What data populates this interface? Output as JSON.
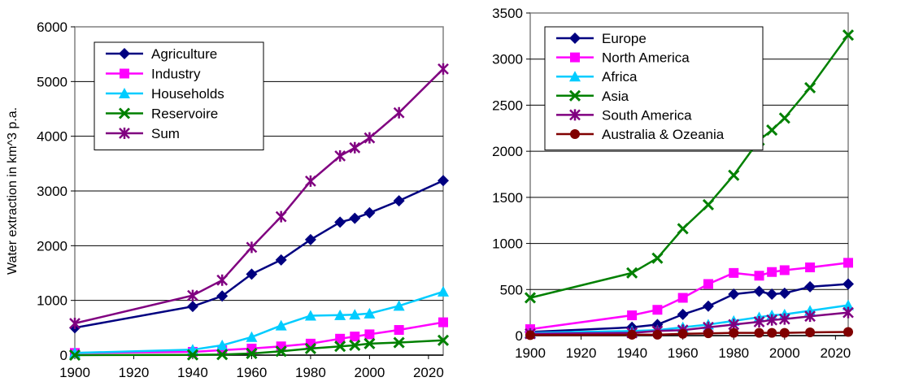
{
  "chart_data": [
    {
      "type": "line",
      "ylabel": "Water extraction in km^3 p.a.",
      "xlabel": "",
      "title": "",
      "xlim": [
        1900,
        2025
      ],
      "ylim": [
        0,
        6000
      ],
      "xticks": [
        "1900",
        "1920",
        "1940",
        "1960",
        "1980",
        "2000",
        "2020"
      ],
      "yticks": [
        "0",
        "1000",
        "2000",
        "3000",
        "4000",
        "5000",
        "6000"
      ],
      "grid": "horizontal",
      "legend_position": "top-left",
      "series": [
        {
          "name": "Agriculture",
          "color": "#000080",
          "marker": "diamond",
          "x": [
            1900,
            1940,
            1950,
            1960,
            1970,
            1980,
            1990,
            1995,
            2000,
            2010,
            2025
          ],
          "y": [
            500,
            890,
            1080,
            1480,
            1740,
            2110,
            2430,
            2500,
            2600,
            2820,
            3190
          ]
        },
        {
          "name": "Industry",
          "color": "#ff00ff",
          "marker": "square",
          "x": [
            1900,
            1940,
            1950,
            1960,
            1970,
            1980,
            1990,
            1995,
            2000,
            2010,
            2025
          ],
          "y": [
            40,
            60,
            90,
            120,
            160,
            210,
            300,
            340,
            380,
            460,
            600
          ]
        },
        {
          "name": "Households",
          "color": "#00ccff",
          "marker": "triangle",
          "x": [
            1900,
            1940,
            1950,
            1960,
            1970,
            1980,
            1990,
            1995,
            2000,
            2010,
            2025
          ],
          "y": [
            40,
            100,
            180,
            330,
            540,
            720,
            730,
            740,
            760,
            900,
            1160
          ]
        },
        {
          "name": "Reservoire",
          "color": "#008000",
          "marker": "x",
          "x": [
            1900,
            1940,
            1950,
            1960,
            1970,
            1980,
            1990,
            1995,
            2000,
            2010,
            2025
          ],
          "y": [
            0,
            5,
            10,
            30,
            70,
            120,
            160,
            180,
            210,
            230,
            270
          ]
        },
        {
          "name": "Sum",
          "color": "#800080",
          "marker": "star",
          "x": [
            1900,
            1940,
            1950,
            1960,
            1970,
            1980,
            1990,
            1995,
            2000,
            2010,
            2025
          ],
          "y": [
            580,
            1090,
            1370,
            1970,
            2530,
            3180,
            3640,
            3790,
            3970,
            4430,
            5230
          ]
        }
      ]
    },
    {
      "type": "line",
      "ylabel": "",
      "xlabel": "",
      "title": "",
      "xlim": [
        1900,
        2025
      ],
      "ylim": [
        0,
        3500
      ],
      "xticks": [
        "1900",
        "1920",
        "1940",
        "1960",
        "1980",
        "2000",
        "2020"
      ],
      "yticks": [
        "0",
        "500",
        "1000",
        "1500",
        "2000",
        "2500",
        "3000",
        "3500"
      ],
      "grid": "horizontal",
      "legend_position": "top-left",
      "series": [
        {
          "name": "Europe",
          "color": "#000080",
          "marker": "diamond",
          "x": [
            1900,
            1940,
            1950,
            1960,
            1970,
            1980,
            1990,
            1995,
            2000,
            2010,
            2025
          ],
          "y": [
            40,
            90,
            120,
            230,
            320,
            450,
            480,
            450,
            460,
            530,
            560
          ]
        },
        {
          "name": "North America",
          "color": "#ff00ff",
          "marker": "square",
          "x": [
            1900,
            1940,
            1950,
            1960,
            1970,
            1980,
            1990,
            1995,
            2000,
            2010,
            2025
          ],
          "y": [
            70,
            220,
            280,
            410,
            560,
            680,
            650,
            690,
            710,
            740,
            790
          ]
        },
        {
          "name": "Africa",
          "color": "#00ccff",
          "marker": "triangle",
          "x": [
            1900,
            1940,
            1950,
            1960,
            1970,
            1980,
            1990,
            1995,
            2000,
            2010,
            2025
          ],
          "y": [
            30,
            50,
            60,
            90,
            120,
            160,
            200,
            220,
            230,
            270,
            330
          ]
        },
        {
          "name": "Asia",
          "color": "#008000",
          "marker": "x",
          "x": [
            1900,
            1940,
            1950,
            1960,
            1970,
            1980,
            1990,
            1995,
            2000,
            2010,
            2025
          ],
          "y": [
            410,
            680,
            840,
            1160,
            1420,
            1740,
            2120,
            2230,
            2360,
            2690,
            3260
          ]
        },
        {
          "name": "South America",
          "color": "#800080",
          "marker": "star",
          "x": [
            1900,
            1940,
            1950,
            1960,
            1970,
            1980,
            1990,
            1995,
            2000,
            2010,
            2025
          ],
          "y": [
            20,
            30,
            50,
            60,
            90,
            120,
            150,
            170,
            180,
            210,
            250
          ]
        },
        {
          "name": "Australia & Ozeania",
          "color": "#800000",
          "marker": "circle",
          "x": [
            1900,
            1940,
            1950,
            1960,
            1970,
            1980,
            1990,
            1995,
            2000,
            2010,
            2025
          ],
          "y": [
            5,
            10,
            10,
            20,
            25,
            30,
            30,
            30,
            30,
            35,
            40
          ]
        }
      ]
    }
  ]
}
